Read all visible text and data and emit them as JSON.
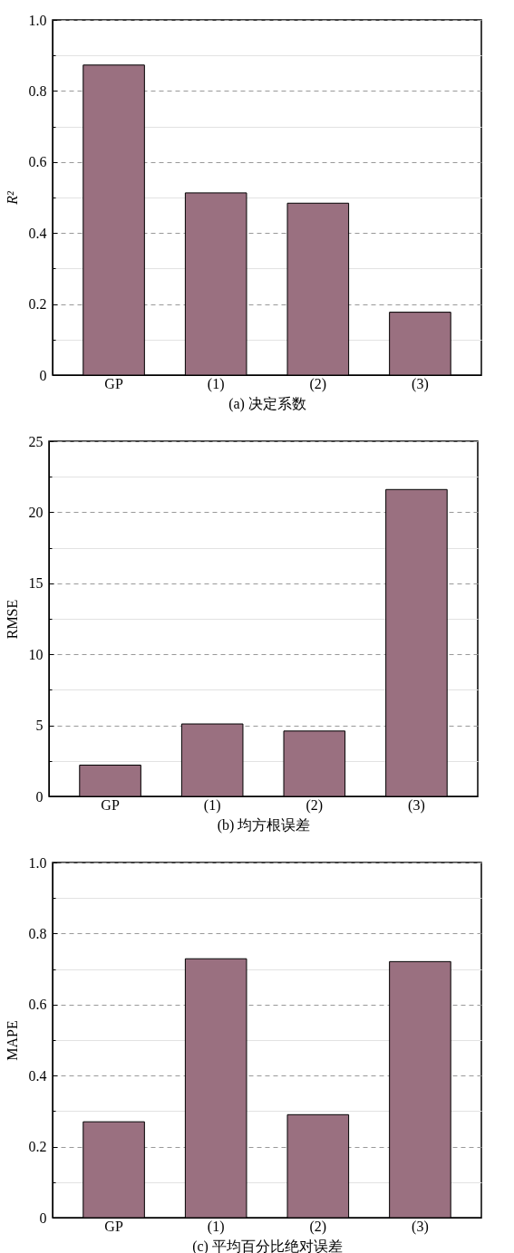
{
  "chart_data": [
    {
      "type": "bar",
      "xlabel": "(a) 决定系数",
      "ylabel": "R²",
      "categories": [
        "GP",
        "(1)",
        "(2)",
        "(3)"
      ],
      "values": [
        0.873,
        0.513,
        0.484,
        0.177
      ],
      "color": "#9a7080",
      "ylim": [
        0,
        1
      ],
      "yticks": [
        0,
        {
          "value": 0.1,
          "label": null
        },
        0.2,
        {
          "value": 0.3,
          "label": null
        },
        0.4,
        {
          "value": 0.5,
          "label": null
        },
        0.6,
        {
          "value": 0.7,
          "label": null
        },
        0.8,
        {
          "value": 0.9,
          "label": null
        },
        {
          "value": 1,
          "label": "1.0"
        }
      ],
      "grid": "y"
    },
    {
      "type": "bar",
      "xlabel": "(b) 均方根误差",
      "ylabel": "RMSE",
      "categories": [
        "GP",
        "(1)",
        "(2)",
        "(3)"
      ],
      "values": [
        2.2,
        5.1,
        4.6,
        21.6
      ],
      "color": "#9a7080",
      "ylim": [
        0,
        25
      ],
      "yticks": [
        0,
        {
          "value": 2.5,
          "label": null
        },
        5,
        {
          "value": 7.5,
          "label": null
        },
        10,
        {
          "value": 12.5,
          "label": null
        },
        15,
        {
          "value": 17.5,
          "label": null
        },
        20,
        {
          "value": 22.5,
          "label": null
        },
        25
      ],
      "grid": "y"
    },
    {
      "type": "bar",
      "xlabel": "(c) 平均百分比绝对误差",
      "ylabel": "MAPE",
      "categories": [
        "GP",
        "(1)",
        "(2)",
        "(3)"
      ],
      "values": [
        0.27,
        0.729,
        0.29,
        0.721
      ],
      "color": "#9a7080",
      "ylim": [
        0,
        1
      ],
      "yticks": [
        0,
        {
          "value": 0.1,
          "label": null
        },
        0.2,
        {
          "value": 0.3,
          "label": null
        },
        0.4,
        {
          "value": 0.5,
          "label": null
        },
        0.6,
        {
          "value": 0.7,
          "label": null
        },
        0.8,
        {
          "value": 0.9,
          "label": null
        },
        {
          "value": 1,
          "label": "1.0"
        }
      ],
      "grid": "y"
    }
  ]
}
